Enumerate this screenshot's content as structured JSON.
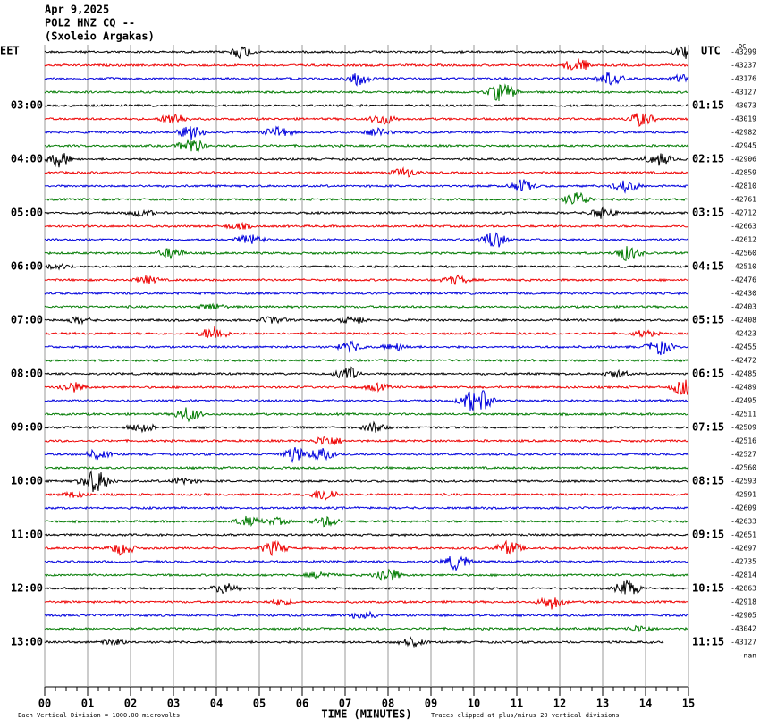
{
  "chart_data": {
    "type": "helicorder",
    "title_lines": [
      "Apr 9,2025",
      "POL2 HNZ CQ --",
      "(Sxoleio Argakas)"
    ],
    "left_axis_label": "EET",
    "right_axis_label": "UTC",
    "corner_label": "DC",
    "xlabel": "TIME (MINUTES)",
    "footnote_left": "Each Vertical Division = 1000.00 microvolts",
    "footnote_right": "Traces clipped at plus/minus 20 vertical divisions",
    "end_label": "-nan",
    "xlim": [
      0,
      15
    ],
    "xticks": [
      {
        "value": 0,
        "label": "00"
      },
      {
        "value": 1,
        "label": "01"
      },
      {
        "value": 2,
        "label": "02"
      },
      {
        "value": 3,
        "label": "03"
      },
      {
        "value": 4,
        "label": "04"
      },
      {
        "value": 5,
        "label": "05"
      },
      {
        "value": 6,
        "label": "06"
      },
      {
        "value": 7,
        "label": "07"
      },
      {
        "value": 8,
        "label": "08"
      },
      {
        "value": 9,
        "label": "09"
      },
      10,
      11,
      12,
      13,
      14,
      15
    ],
    "trace_colors": [
      "#000000",
      "#ee0000",
      "#0000dd",
      "#007a00"
    ],
    "left_times": [
      null,
      null,
      null,
      null,
      "03:00",
      null,
      null,
      null,
      "04:00",
      null,
      null,
      null,
      "05:00",
      null,
      null,
      null,
      "06:00",
      null,
      null,
      null,
      "07:00",
      null,
      null,
      null,
      "08:00",
      null,
      null,
      null,
      "09:00",
      null,
      null,
      null,
      "10:00",
      null,
      null,
      null,
      "11:00",
      null,
      null,
      null,
      "12:00",
      null,
      null,
      null,
      "13:00"
    ],
    "right_times": [
      null,
      null,
      null,
      null,
      "01:15",
      null,
      null,
      null,
      "02:15",
      null,
      null,
      null,
      "03:15",
      null,
      null,
      null,
      "04:15",
      null,
      null,
      null,
      "05:15",
      null,
      null,
      null,
      "06:15",
      null,
      null,
      null,
      "07:15",
      null,
      null,
      null,
      "08:15",
      null,
      null,
      null,
      "09:15",
      null,
      null,
      null,
      "10:15",
      null,
      null,
      null,
      "11:15"
    ],
    "offsets": [
      -43299,
      -43237,
      -43176,
      -43127,
      -43073,
      -43019,
      -42982,
      -42945,
      -42906,
      -42859,
      -42810,
      -42761,
      -42712,
      -42663,
      -42612,
      -42560,
      -42510,
      -42476,
      -42430,
      -42403,
      -42408,
      -42423,
      -42455,
      -42472,
      -42485,
      -42489,
      -42495,
      -42511,
      -42509,
      -42516,
      -42527,
      -42560,
      -42593,
      -42591,
      -42609,
      -42633,
      -42651,
      -42697,
      -42735,
      -42814,
      -42863,
      -42918,
      -42905,
      -43042,
      -43127
    ]
  }
}
